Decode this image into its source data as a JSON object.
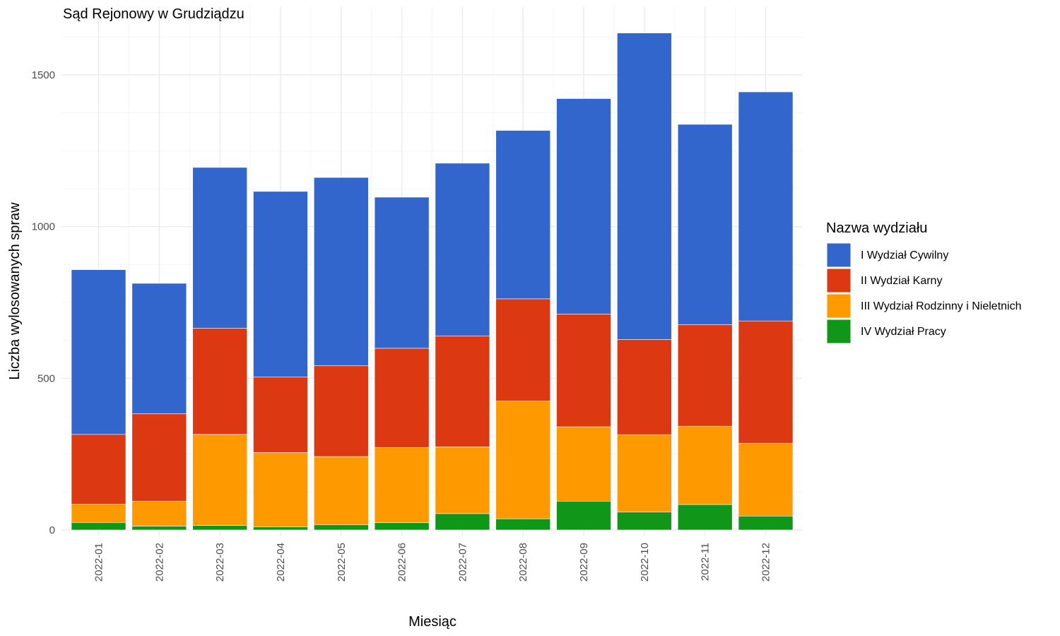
{
  "chart_data": {
    "type": "bar",
    "stacked": true,
    "title": "Sąd Rejonowy w Grudziądzu",
    "xlabel": "Miesiąc",
    "ylabel": "Liczba wylosowanych spraw",
    "ylim": [
      0,
      1650
    ],
    "yticks": [
      0,
      500,
      1000,
      1500
    ],
    "grid": true,
    "legend": {
      "title": "Nazwa wydziału",
      "placement": "right"
    },
    "categories": [
      "2022-01",
      "2022-02",
      "2022-03",
      "2022-04",
      "2022-05",
      "2022-06",
      "2022-07",
      "2022-08",
      "2022-09",
      "2022-10",
      "2022-11",
      "2022-12"
    ],
    "series": [
      {
        "name": "I Wydział Cywilny",
        "color": "#3366cc",
        "values": [
          543,
          430,
          530,
          612,
          620,
          498,
          570,
          555,
          710,
          1010,
          660,
          755
        ]
      },
      {
        "name": "II Wydział Karny",
        "color": "#dc3912",
        "values": [
          230,
          288,
          350,
          249,
          300,
          327,
          365,
          337,
          372,
          314,
          335,
          403
        ]
      },
      {
        "name": "III Wydział Rodzinny i Nieletnich",
        "color": "#ff9900",
        "values": [
          60,
          82,
          300,
          245,
          225,
          248,
          220,
          388,
          245,
          255,
          258,
          240
        ]
      },
      {
        "name": "IV Wydział Pracy",
        "color": "#109618",
        "values": [
          25,
          13,
          15,
          10,
          17,
          24,
          54,
          37,
          95,
          59,
          84,
          46
        ]
      }
    ]
  }
}
